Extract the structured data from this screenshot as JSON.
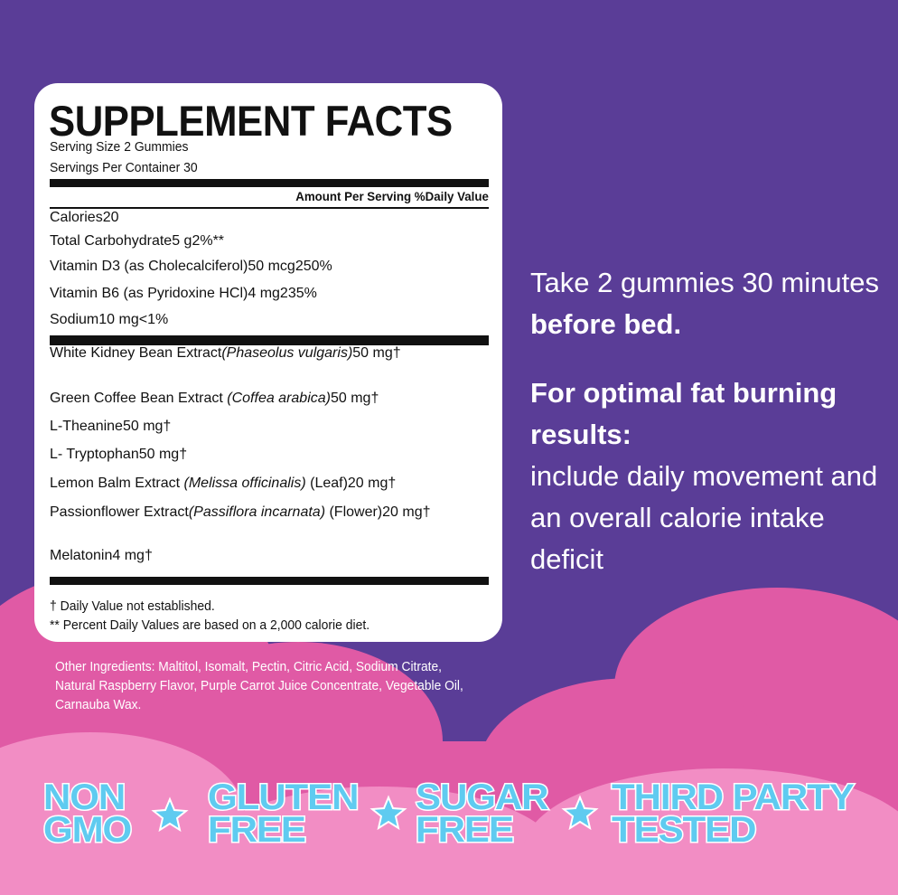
{
  "facts": {
    "title": "SUPPLEMENT FACTS",
    "serving_size": "Serving Size 2 Gummies",
    "servings": "Servings Per Container 30",
    "header": {
      "amount": "Amount Per Serving",
      "dv": "%Daily Value"
    },
    "rows": [
      {
        "name": "Calories",
        "amount": "20"
      },
      {
        "name": "Total Carbohydrate",
        "amount": "5 g",
        "dv": "2%**"
      },
      {
        "name": "Vitamin D3 (as Cholecalciferol)",
        "amount": "50 mcg",
        "dv": "250%"
      },
      {
        "name": "Vitamin B6 (as Pyridoxine HCl)",
        "amount": "4 mg",
        "dv": "235%"
      },
      {
        "name": "Sodium",
        "amount": "10 mg",
        "dv": "<1%"
      }
    ],
    "extracts": [
      {
        "name": "White Kidney Bean Extract",
        "latin": "(Phaseolus vulgaris)",
        "wrap": true,
        "amount": "50 mg",
        "dv": "†"
      },
      {
        "name": "Green Coffee Bean Extract",
        "latin": "(Coffea arabica)",
        "amount": "50 mg",
        "dv": "†"
      },
      {
        "name": "L-Theanine",
        "amount": "50 mg",
        "dv": "†"
      },
      {
        "name": "L- Tryptophan",
        "amount": "50 mg",
        "dv": "†"
      },
      {
        "name": "Lemon Balm Extract",
        "latin": "(Melissa officinalis)",
        "part": "(Leaf)",
        "amount": "20 mg",
        "dv": "†"
      },
      {
        "name": "Passionflower Extract",
        "latin": "(Passiflora incarnata)",
        "part": "(Flower)",
        "wrap": true,
        "amount": "20 mg",
        "dv": "†"
      },
      {
        "name": "Melatonin",
        "amount": "4 mg",
        "dv": "†"
      }
    ],
    "footnotes": [
      "† Daily Value not established.",
      "** Percent Daily Values are based on a 2,000 calorie diet."
    ]
  },
  "other_ingredients": "Other Ingredients: Maltitol, Isomalt, Pectin, Citric Acid, Sodium Citrate, Natural Raspberry Flavor, Purple Carrot Juice Concentrate, Vegetable Oil, Carnauba Wax.",
  "directions": {
    "text": "Take 2 gummies 30 minutes",
    "bold": "before bed."
  },
  "tip": {
    "bold": "For optimal fat burning results:",
    "text": "include daily movement and an overall calorie intake deficit"
  },
  "badges": [
    [
      "NON",
      "GMO"
    ],
    [
      "GLUTEN",
      "FREE"
    ],
    [
      "SUGAR",
      "FREE"
    ],
    [
      "THIRD PARTY",
      "TESTED"
    ]
  ]
}
